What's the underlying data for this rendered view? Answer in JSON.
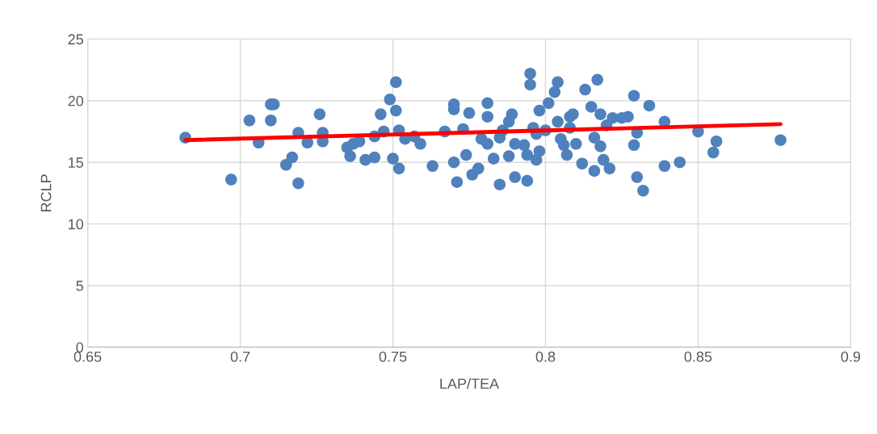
{
  "chart_data": {
    "type": "scatter",
    "xlabel": "LAP/TEA",
    "ylabel": "RCLP",
    "xlim": [
      0.65,
      0.9
    ],
    "xticks": [
      0.65,
      0.7,
      0.75,
      0.8,
      0.85,
      0.9
    ],
    "ylim": [
      0,
      25
    ],
    "yticks": [
      0,
      5,
      10,
      15,
      20,
      25
    ],
    "grid": true,
    "marker": "circle",
    "series": [
      {
        "color": "#4f81bd",
        "x": [
          0.682,
          0.697,
          0.703,
          0.706,
          0.71,
          0.711,
          0.71,
          0.715,
          0.717,
          0.719,
          0.719,
          0.722,
          0.726,
          0.727,
          0.727,
          0.735,
          0.736,
          0.737,
          0.739,
          0.741,
          0.744,
          0.744,
          0.746,
          0.747,
          0.749,
          0.75,
          0.751,
          0.751,
          0.752,
          0.752,
          0.754,
          0.757,
          0.759,
          0.763,
          0.767,
          0.77,
          0.77,
          0.77,
          0.771,
          0.773,
          0.774,
          0.775,
          0.776,
          0.778,
          0.779,
          0.781,
          0.781,
          0.781,
          0.783,
          0.785,
          0.785,
          0.786,
          0.788,
          0.788,
          0.789,
          0.79,
          0.79,
          0.793,
          0.794,
          0.794,
          0.795,
          0.795,
          0.796,
          0.797,
          0.797,
          0.798,
          0.798,
          0.8,
          0.801,
          0.803,
          0.804,
          0.804,
          0.805,
          0.806,
          0.807,
          0.808,
          0.808,
          0.809,
          0.81,
          0.812,
          0.813,
          0.815,
          0.816,
          0.816,
          0.817,
          0.818,
          0.818,
          0.819,
          0.82,
          0.821,
          0.822,
          0.825,
          0.827,
          0.829,
          0.829,
          0.83,
          0.83,
          0.832,
          0.834,
          0.839,
          0.839,
          0.844,
          0.85,
          0.855,
          0.856,
          0.877
        ],
        "values": [
          17.0,
          13.6,
          18.4,
          16.6,
          19.7,
          19.7,
          18.4,
          14.8,
          15.4,
          17.4,
          13.3,
          16.6,
          18.9,
          17.4,
          16.7,
          16.2,
          15.5,
          16.5,
          16.7,
          15.2,
          17.1,
          15.4,
          18.9,
          17.5,
          20.1,
          15.3,
          21.5,
          19.2,
          17.6,
          14.5,
          16.9,
          17.1,
          16.5,
          14.7,
          17.5,
          19.7,
          19.3,
          15.0,
          13.4,
          17.7,
          15.6,
          19.0,
          14.0,
          14.5,
          16.9,
          19.8,
          18.7,
          16.5,
          15.3,
          13.2,
          17.0,
          17.6,
          15.5,
          18.3,
          18.9,
          16.5,
          13.8,
          16.4,
          15.6,
          13.5,
          22.2,
          21.3,
          17.8,
          15.2,
          17.3,
          19.2,
          15.9,
          17.6,
          19.8,
          20.7,
          18.3,
          21.5,
          16.9,
          16.4,
          15.6,
          18.7,
          17.8,
          18.9,
          16.5,
          14.9,
          20.9,
          19.5,
          17.0,
          14.3,
          21.7,
          16.3,
          18.9,
          15.2,
          18.0,
          14.5,
          18.6,
          18.6,
          18.7,
          16.4,
          20.4,
          17.4,
          13.8,
          12.7,
          19.6,
          14.7,
          18.3,
          15.0,
          17.5,
          15.8,
          16.7,
          16.8
        ]
      },
      {
        "type": "line",
        "color": "#ff0000",
        "marker": "none",
        "x": [
          0.682,
          0.877
        ],
        "values": [
          16.8,
          18.1
        ]
      }
    ]
  }
}
